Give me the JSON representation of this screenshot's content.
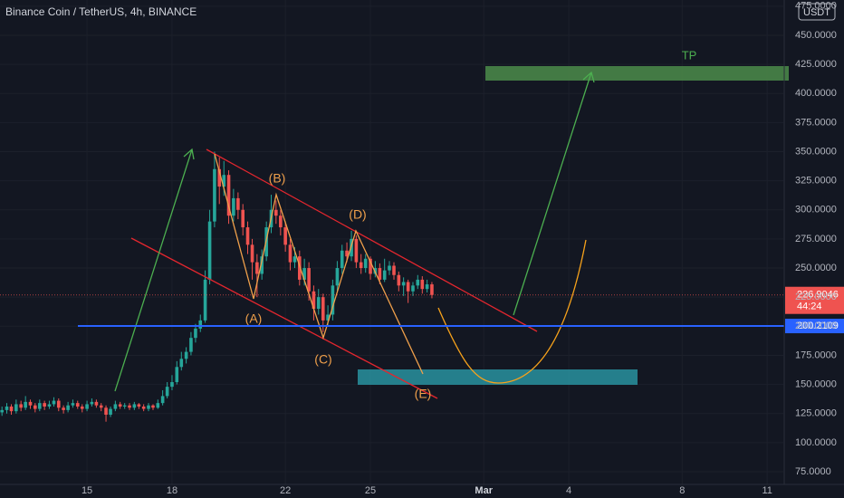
{
  "chart_data": {
    "type": "candlestick",
    "title": "Binance Coin / TetherUS, 4h, BINANCE",
    "currency": "USDT",
    "countdown": "44:24",
    "up_color": "#26a69a",
    "down_color": "#ef5350",
    "x": [
      12,
      12.17,
      12.33,
      12.5,
      12.67,
      12.83,
      13,
      13.17,
      13.33,
      13.5,
      13.67,
      13.83,
      14,
      14.17,
      14.33,
      14.5,
      14.67,
      14.83,
      15,
      15.17,
      15.33,
      15.5,
      15.67,
      15.83,
      16,
      16.17,
      16.33,
      16.5,
      16.67,
      16.83,
      17,
      17.17,
      17.33,
      17.5,
      17.67,
      17.83,
      18,
      18.17,
      18.33,
      18.5,
      18.67,
      18.83,
      19,
      19.17,
      19.33,
      19.5,
      19.67,
      19.83,
      20,
      20.17,
      20.33,
      20.5,
      20.67,
      20.83,
      21,
      21.17,
      21.33,
      21.5,
      21.67,
      21.83,
      22,
      22.17,
      22.33,
      22.5,
      22.67,
      22.83,
      23,
      23.17,
      23.33,
      23.5,
      23.67,
      23.83,
      24,
      24.17,
      24.33,
      24.5,
      24.67,
      24.83,
      25,
      25.17,
      25.33,
      25.5,
      25.67,
      25.83,
      26,
      26.17,
      26.33,
      26.5,
      26.67,
      26.83,
      27,
      27.17
    ],
    "open": [
      126,
      128,
      131,
      127,
      133,
      130,
      135,
      132,
      129,
      134,
      131,
      133,
      136,
      130,
      128,
      132,
      134,
      131,
      129,
      133,
      135,
      132,
      130,
      124,
      129,
      133,
      131,
      132,
      130,
      133,
      131,
      129,
      132,
      130,
      134,
      140,
      148,
      152,
      165,
      172,
      178,
      190,
      198,
      205,
      240,
      290,
      335,
      320,
      330,
      295,
      310,
      300,
      285,
      270,
      255,
      245,
      260,
      285,
      300,
      295,
      285,
      270,
      255,
      260,
      240,
      250,
      230,
      215,
      225,
      205,
      210,
      235,
      250,
      265,
      260,
      275,
      255,
      250,
      258,
      245,
      250,
      240,
      248,
      252,
      244,
      235,
      238,
      230,
      235,
      240,
      232,
      236
    ],
    "high": [
      131,
      134,
      133,
      137,
      136,
      140,
      137,
      134,
      137,
      136,
      136,
      139,
      138,
      132,
      135,
      137,
      136,
      133,
      136,
      138,
      137,
      134,
      132,
      131,
      136,
      135,
      134,
      134,
      135,
      134,
      133,
      134,
      133,
      137,
      145,
      152,
      158,
      170,
      178,
      182,
      195,
      202,
      210,
      248,
      300,
      350,
      345,
      342,
      334,
      318,
      315,
      305,
      290,
      275,
      262,
      266,
      290,
      313,
      308,
      300,
      290,
      275,
      268,
      265,
      258,
      255,
      235,
      232,
      228,
      218,
      240,
      256,
      270,
      272,
      282,
      278,
      262,
      262,
      260,
      256,
      254,
      258,
      256,
      255,
      247,
      242,
      240,
      238,
      244,
      243,
      240,
      238
    ],
    "low": [
      123,
      125,
      124,
      125,
      127,
      128,
      129,
      126,
      127,
      128,
      129,
      131,
      127,
      125,
      126,
      130,
      129,
      126,
      127,
      131,
      130,
      127,
      118,
      122,
      127,
      129,
      129,
      128,
      128,
      129,
      127,
      127,
      128,
      129,
      132,
      138,
      145,
      150,
      162,
      168,
      175,
      186,
      195,
      203,
      236,
      285,
      305,
      312,
      288,
      290,
      292,
      278,
      262,
      240,
      225,
      240,
      256,
      280,
      288,
      278,
      264,
      248,
      250,
      235,
      235,
      222,
      205,
      210,
      195,
      200,
      205,
      230,
      245,
      255,
      256,
      250,
      245,
      246,
      240,
      242,
      236,
      238,
      244,
      240,
      230,
      226,
      220,
      226,
      232,
      228,
      229,
      224
    ],
    "close": [
      128,
      131,
      127,
      133,
      130,
      135,
      132,
      129,
      134,
      131,
      133,
      136,
      130,
      128,
      132,
      134,
      131,
      129,
      133,
      135,
      132,
      130,
      124,
      129,
      133,
      131,
      132,
      130,
      133,
      131,
      129,
      132,
      130,
      134,
      140,
      148,
      152,
      165,
      172,
      178,
      190,
      198,
      205,
      240,
      290,
      335,
      320,
      330,
      295,
      310,
      300,
      285,
      270,
      255,
      245,
      260,
      285,
      300,
      295,
      285,
      270,
      255,
      260,
      240,
      250,
      230,
      215,
      225,
      205,
      210,
      235,
      250,
      265,
      260,
      275,
      255,
      250,
      258,
      245,
      250,
      240,
      248,
      252,
      244,
      235,
      238,
      230,
      235,
      240,
      232,
      236,
      226.9046
    ],
    "hline": 200.2109,
    "annotations": [
      "(A)",
      "(B)",
      "(C)",
      "(D)",
      "(E)",
      "TP"
    ],
    "xlim": [
      11.93,
      39.57
    ],
    "xticks": [
      15,
      18,
      22,
      25,
      {
        "value": 29,
        "label": "Mar"
      },
      {
        "value": 32,
        "label": "4"
      },
      {
        "value": 36,
        "label": "8"
      },
      {
        "value": 39,
        "label": "11"
      }
    ],
    "ylim": [
      64.1,
      480.3
    ],
    "yticks": [
      {
        "value": 75,
        "label": "75.0000"
      },
      {
        "value": 100,
        "label": "100.0000"
      },
      {
        "value": 125,
        "label": "125.0000"
      },
      {
        "value": 150,
        "label": "150.0000"
      },
      {
        "value": 175,
        "label": "175.0000"
      },
      {
        "value": 200,
        "label": "200.0000"
      },
      {
        "value": 225,
        "label": "225.0000"
      },
      {
        "value": 250,
        "label": "250.0000"
      },
      {
        "value": 275,
        "label": "275.0000"
      },
      {
        "value": 300,
        "label": "300.0000"
      },
      {
        "value": 325,
        "label": "325.0000"
      },
      {
        "value": 350,
        "label": "350.0000"
      },
      {
        "value": 375,
        "label": "375.0000"
      },
      {
        "value": 400,
        "label": "400.0000"
      },
      {
        "value": 425,
        "label": "425.0000"
      },
      {
        "value": 450,
        "label": "450.0000"
      },
      {
        "value": 475,
        "label": "475.0000"
      }
    ],
    "grid": true
  }
}
